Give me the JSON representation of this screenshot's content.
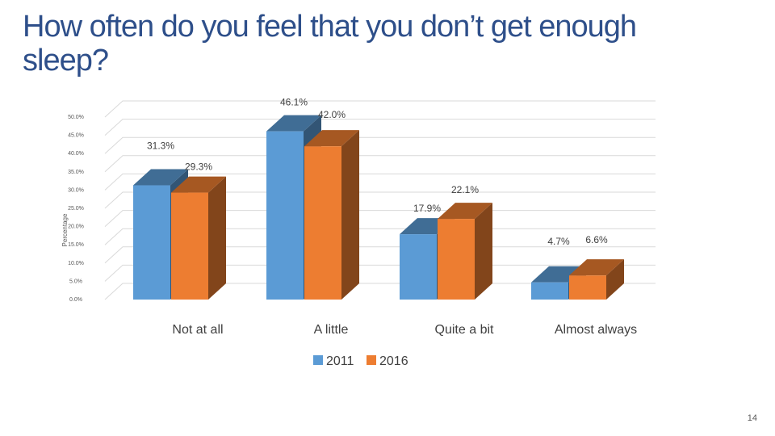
{
  "slide": {
    "title": "How often do you feel that you don’t get enough sleep?",
    "page_number": "14"
  },
  "colors": {
    "title": "#2e4f8a",
    "series_2011": "#5b9bd5",
    "series_2016": "#ed7d31"
  },
  "chart_data": {
    "type": "bar",
    "categories": [
      "Not at all",
      "A little",
      "Quite a bit",
      "Almost always"
    ],
    "series": [
      {
        "name": "2011",
        "values": [
          31.3,
          46.1,
          17.9,
          4.7
        ],
        "labels": [
          "31.3%",
          "46.1%",
          "17.9%",
          "4.7%"
        ]
      },
      {
        "name": "2016",
        "values": [
          29.3,
          42.0,
          22.1,
          6.6
        ],
        "labels": [
          "29.3%",
          "42.0%",
          "22.1%",
          "6.6%"
        ]
      }
    ],
    "ylabel": "Percentage",
    "ylim": [
      0,
      50
    ],
    "yticks": [
      "0.0%",
      "5.0%",
      "10.0%",
      "15.0%",
      "20.0%",
      "25.0%",
      "30.0%",
      "35.0%",
      "40.0%",
      "45.0%",
      "50.0%"
    ],
    "grid": true,
    "legend_position": "bottom",
    "style": "3d-clustered-column"
  }
}
